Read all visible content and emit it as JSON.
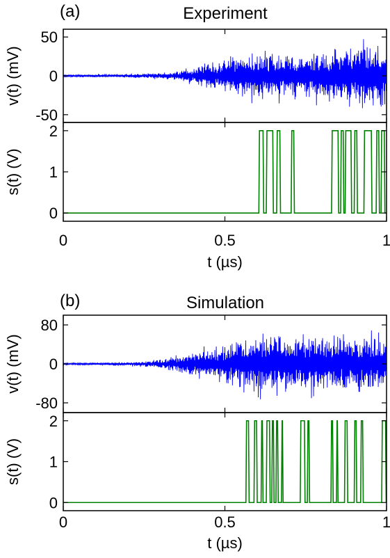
{
  "chart_data": [
    {
      "type": "line",
      "panel_tag": "(a)",
      "title": "Experiment",
      "xlabel": "t (µs)",
      "xlim": [
        0,
        1
      ],
      "xticks": [
        0,
        0.5,
        1
      ],
      "xtick_labels": [
        "0",
        "0.5",
        "1"
      ],
      "subplots": [
        {
          "name": "voltage",
          "ylabel": "v(t) (mV)",
          "ylim": [
            -60,
            60
          ],
          "yticks": [
            -50,
            0,
            50
          ],
          "ytick_labels": [
            "-50",
            "0",
            "50"
          ],
          "color": "#0000ff",
          "envelope": [
            [
              0,
              2
            ],
            [
              0.1,
              2.5
            ],
            [
              0.2,
              3
            ],
            [
              0.3,
              5
            ],
            [
              0.35,
              7
            ],
            [
              0.4,
              12
            ],
            [
              0.45,
              22
            ],
            [
              0.5,
              27
            ],
            [
              0.55,
              32
            ],
            [
              0.6,
              40
            ],
            [
              0.65,
              38
            ],
            [
              0.7,
              32
            ],
            [
              0.75,
              36
            ],
            [
              0.8,
              40
            ],
            [
              0.85,
              42
            ],
            [
              0.9,
              48
            ],
            [
              0.95,
              54
            ],
            [
              1.0,
              46
            ]
          ]
        },
        {
          "name": "switch",
          "ylabel": "s(t) (V)",
          "ylim": [
            -0.2,
            2.2
          ],
          "yticks": [
            0,
            1,
            2
          ],
          "ytick_labels": [
            "0",
            "1",
            "2"
          ],
          "color": "#008000",
          "levels": [
            0,
            2
          ],
          "high_intervals": [
            [
              0.605,
              0.62
            ],
            [
              0.628,
              0.65
            ],
            [
              0.66,
              0.672
            ],
            [
              0.705,
              0.715
            ],
            [
              0.83,
              0.852
            ],
            [
              0.858,
              0.868
            ],
            [
              0.872,
              0.892
            ],
            [
              0.9,
              0.91
            ],
            [
              0.93,
              0.955
            ],
            [
              0.968,
              0.978
            ],
            [
              0.983,
              0.995
            ]
          ]
        }
      ]
    },
    {
      "type": "line",
      "panel_tag": "(b)",
      "title": "Simulation",
      "xlabel": "t (µs)",
      "xlim": [
        0,
        1
      ],
      "xticks": [
        0,
        0.5,
        1
      ],
      "xtick_labels": [
        "0",
        "0.5",
        "1"
      ],
      "subplots": [
        {
          "name": "voltage",
          "ylabel": "v(t) (mV)",
          "ylim": [
            -100,
            100
          ],
          "yticks": [
            -80,
            0,
            80
          ],
          "ytick_labels": [
            "-80",
            "0",
            "80"
          ],
          "color": "#0000ff",
          "envelope": [
            [
              0,
              2
            ],
            [
              0.1,
              3
            ],
            [
              0.15,
              4
            ],
            [
              0.2,
              5
            ],
            [
              0.25,
              7
            ],
            [
              0.3,
              12
            ],
            [
              0.35,
              20
            ],
            [
              0.4,
              30
            ],
            [
              0.45,
              40
            ],
            [
              0.5,
              50
            ],
            [
              0.55,
              62
            ],
            [
              0.6,
              72
            ],
            [
              0.65,
              82
            ],
            [
              0.7,
              72
            ],
            [
              0.75,
              78
            ],
            [
              0.8,
              80
            ],
            [
              0.85,
              70
            ],
            [
              0.9,
              75
            ],
            [
              0.95,
              70
            ],
            [
              1.0,
              68
            ]
          ]
        },
        {
          "name": "switch",
          "ylabel": "s(t) (V)",
          "ylim": [
            -0.2,
            2.2
          ],
          "yticks": [
            0,
            1,
            2
          ],
          "ytick_labels": [
            "0",
            "1",
            "2"
          ],
          "color": "#008000",
          "levels": [
            0,
            2
          ],
          "high_intervals": [
            [
              0.565,
              0.575
            ],
            [
              0.59,
              0.6
            ],
            [
              0.612,
              0.618
            ],
            [
              0.628,
              0.64
            ],
            [
              0.645,
              0.652
            ],
            [
              0.658,
              0.665
            ],
            [
              0.675,
              0.68
            ],
            [
              0.733,
              0.748
            ],
            [
              0.755,
              0.762
            ],
            [
              0.828,
              0.835
            ],
            [
              0.845,
              0.85
            ],
            [
              0.87,
              0.88
            ],
            [
              0.9,
              0.908
            ],
            [
              0.92,
              0.928
            ],
            [
              0.985,
              0.999
            ]
          ]
        }
      ]
    }
  ]
}
